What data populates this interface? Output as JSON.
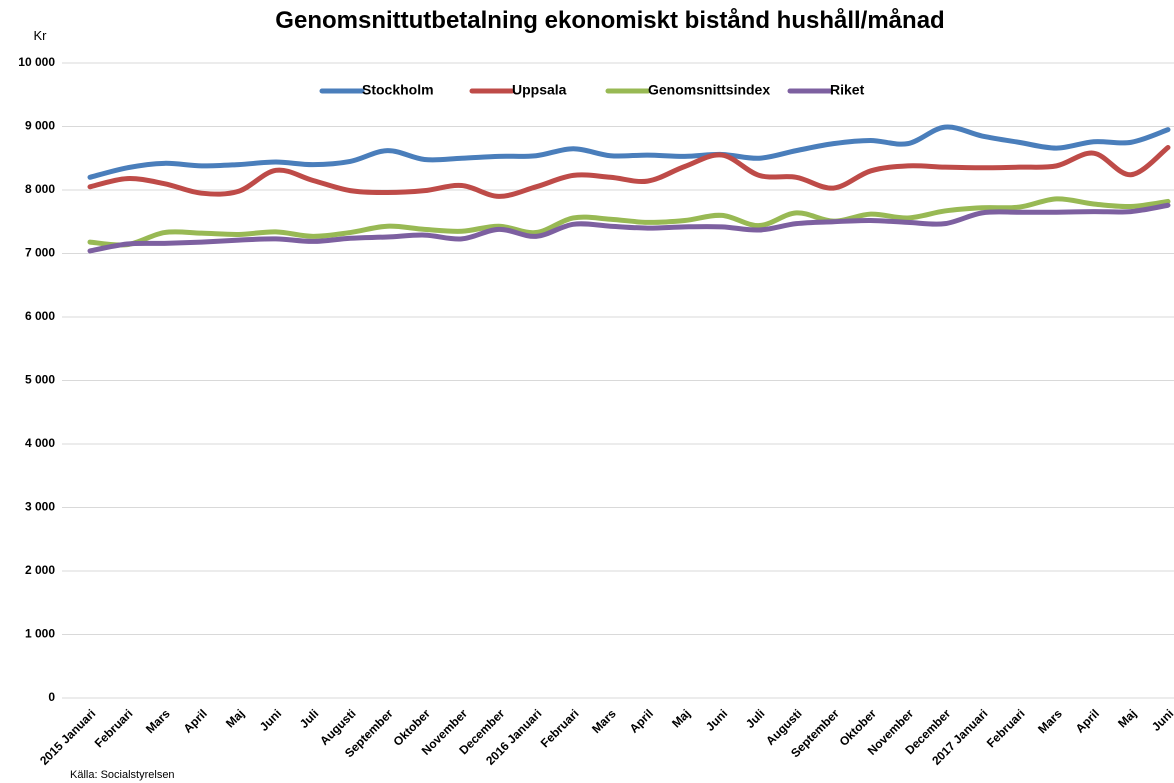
{
  "chart_data": {
    "type": "line",
    "title": "Genomsnittutbetalning ekonomiskt bistånd hushåll/månad",
    "y_label": "Kr",
    "source": "Källa: Socialstyrelsen",
    "categories": [
      "2015 Januari",
      "Februari",
      "Mars",
      "April",
      "Maj",
      "Juni",
      "Juli",
      "Augusti",
      "September",
      "Oktober",
      "November",
      "December",
      "2016 Januari",
      "Februari",
      "Mars",
      "April",
      "Maj",
      "Juni",
      "Juli",
      "Augusti",
      "September",
      "Oktober",
      "November",
      "December",
      "2017 Januari",
      "Februari",
      "Mars",
      "April",
      "Maj",
      "Juni"
    ],
    "series": [
      {
        "name": "Stockholm",
        "color": "#4a7ebb",
        "values": [
          8200,
          8350,
          8420,
          8380,
          8400,
          8440,
          8400,
          8450,
          8620,
          8480,
          8500,
          8530,
          8540,
          8650,
          8540,
          8550,
          8530,
          8560,
          8500,
          8620,
          8730,
          8780,
          8730,
          8990,
          8850,
          8750,
          8660,
          8760,
          8750,
          8950
        ]
      },
      {
        "name": "Uppsala",
        "color": "#be4b48",
        "values": [
          8050,
          8180,
          8100,
          7950,
          7980,
          8310,
          8150,
          7990,
          7960,
          7990,
          8070,
          7900,
          8050,
          8230,
          8200,
          8140,
          8370,
          8550,
          8230,
          8200,
          8030,
          8300,
          8380,
          8360,
          8350,
          8360,
          8380,
          8580,
          8240,
          8670
        ]
      },
      {
        "name": "Genomsnittsindex",
        "color": "#98b954",
        "values": [
          7180,
          7140,
          7330,
          7320,
          7300,
          7340,
          7270,
          7330,
          7430,
          7380,
          7350,
          7430,
          7330,
          7560,
          7540,
          7490,
          7520,
          7600,
          7440,
          7640,
          7510,
          7620,
          7560,
          7670,
          7720,
          7730,
          7860,
          7780,
          7740,
          7820
        ]
      },
      {
        "name": "Riket",
        "color": "#7d60a0",
        "values": [
          7040,
          7150,
          7160,
          7180,
          7210,
          7230,
          7190,
          7240,
          7260,
          7290,
          7230,
          7380,
          7270,
          7460,
          7430,
          7400,
          7420,
          7420,
          7370,
          7470,
          7500,
          7520,
          7490,
          7470,
          7640,
          7650,
          7650,
          7660,
          7660,
          7760
        ]
      }
    ],
    "ylim": [
      0,
      10000
    ],
    "yticks": [
      0,
      {
        "value": 1000,
        "label": "1 000"
      },
      {
        "value": 2000,
        "label": "2 000"
      },
      {
        "value": 3000,
        "label": "3 000"
      },
      {
        "value": 4000,
        "label": "4 000"
      },
      {
        "value": 5000,
        "label": "5 000"
      },
      {
        "value": 6000,
        "label": "6 000"
      },
      {
        "value": 7000,
        "label": "7 000"
      },
      {
        "value": 8000,
        "label": "8 000"
      },
      {
        "value": 9000,
        "label": "9 000"
      },
      {
        "value": 10000,
        "label": "10 000"
      }
    ],
    "grid": true,
    "legend": "top"
  }
}
